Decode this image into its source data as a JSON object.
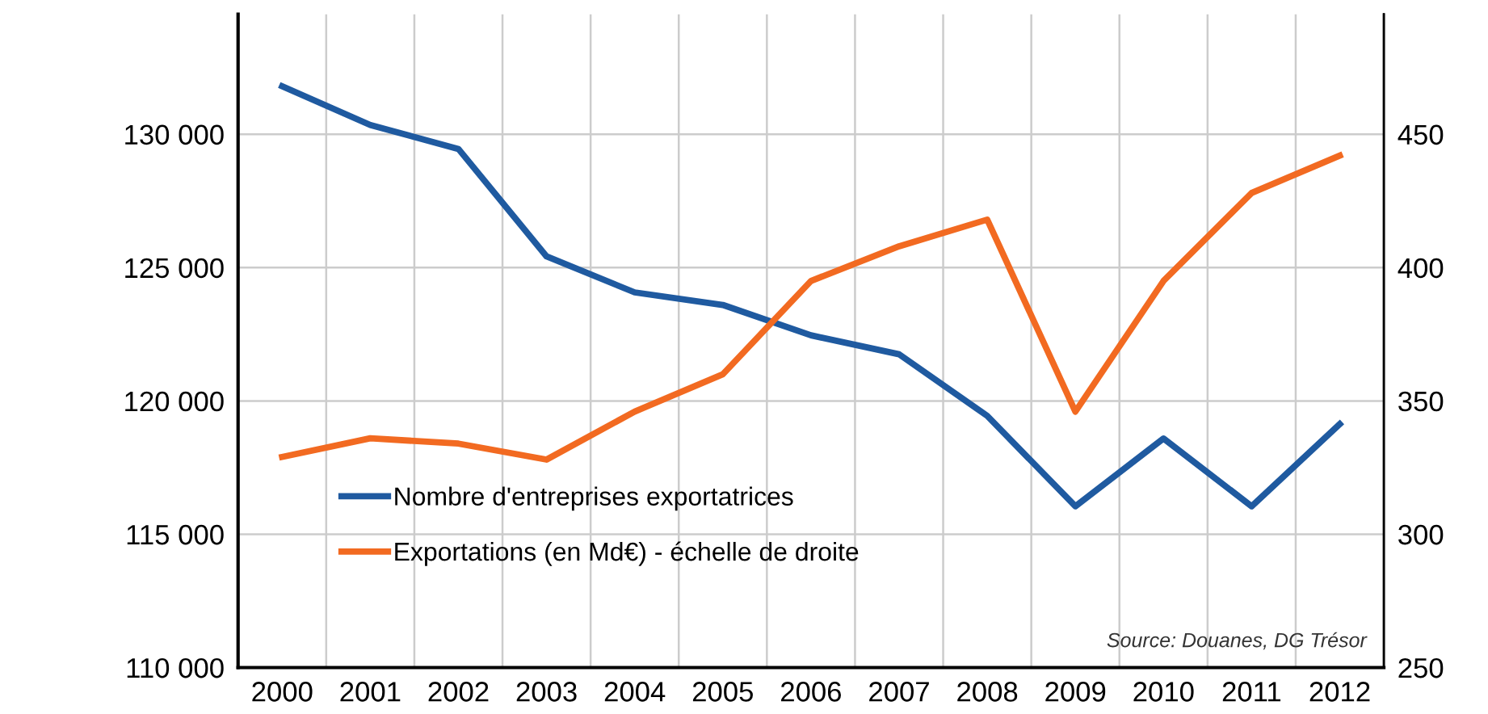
{
  "chart_data": {
    "type": "line",
    "categories": [
      "2000",
      "2001",
      "2002",
      "2003",
      "2004",
      "2005",
      "2006",
      "2007",
      "2008",
      "2009",
      "2010",
      "2011",
      "2012"
    ],
    "series": [
      {
        "name": "Nombre d'entreprises exportatrices",
        "color": "#1f5aa0",
        "values": [
          131800,
          130350,
          129450,
          125420,
          124070,
          123600,
          122460,
          121750,
          119440,
          116050,
          118590,
          116050,
          119130
        ]
      },
      {
        "name": "Exportations (en Md€) - échelle de droite",
        "color": "#f26a21",
        "axis": "y2",
        "values": [
          329,
          336,
          334,
          328,
          346,
          360,
          395,
          408,
          418,
          346,
          395,
          428,
          442
        ]
      }
    ],
    "ylim": [
      110000,
      134500
    ],
    "yticks": [
      {
        "value": 110000,
        "label": "110 000"
      },
      {
        "value": 115000,
        "label": "115 000"
      },
      {
        "value": 120000,
        "label": "120 000"
      },
      {
        "value": 125000,
        "label": "125 000"
      },
      {
        "value": 130000,
        "label": "130 000"
      }
    ],
    "y2lim": [
      250,
      495
    ],
    "y2ticks": [
      250,
      300,
      350,
      400,
      450
    ],
    "grid": true,
    "legend": "bottom left",
    "marker": "none",
    "line_style": "solid",
    "annotations": [
      "Source: Douanes, DG Trésor"
    ]
  }
}
